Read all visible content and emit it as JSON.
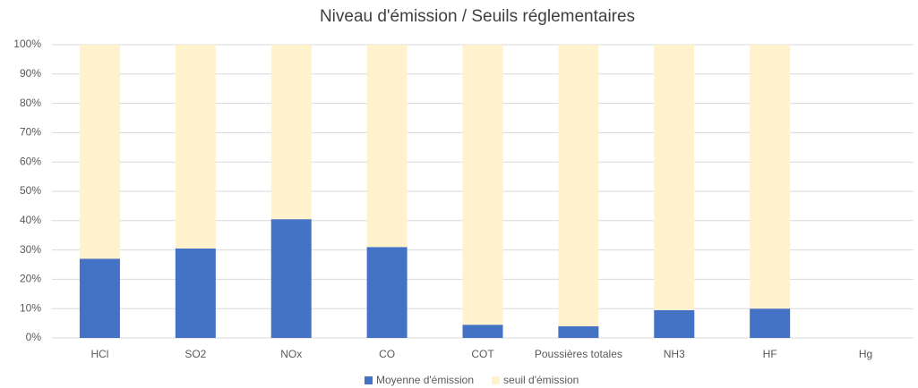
{
  "chart_data": {
    "type": "stacked_bar",
    "title": "Niveau d'émission / Seuils réglementaires",
    "categories": [
      "HCl",
      "SO2",
      "NOx",
      "CO",
      "COT",
      "Poussières totales",
      "NH3",
      "HF",
      "Hg"
    ],
    "series": [
      {
        "name": "Moyenne d'émission",
        "color": "#4472c4",
        "values": [
          27,
          30.5,
          40.5,
          31,
          4.5,
          4,
          9.5,
          10,
          0
        ]
      },
      {
        "name": "seuil d'émission",
        "color": "#fff2cc",
        "values": [
          73,
          69.5,
          59.5,
          69,
          95.5,
          96,
          90.5,
          90,
          0
        ]
      }
    ],
    "ylim": [
      0,
      100
    ],
    "yticks": [
      {
        "value": 0,
        "label": "0%"
      },
      {
        "value": 10,
        "label": "10%"
      },
      {
        "value": 20,
        "label": "20%"
      },
      {
        "value": 30,
        "label": "30%"
      },
      {
        "value": 40,
        "label": "40%"
      },
      {
        "value": 50,
        "label": "50%"
      },
      {
        "value": 60,
        "label": "60%"
      },
      {
        "value": 70,
        "label": "70%"
      },
      {
        "value": 80,
        "label": "80%"
      },
      {
        "value": 90,
        "label": "90%"
      },
      {
        "value": 100,
        "label": "100%"
      }
    ],
    "grid": true,
    "legend": "bottom"
  }
}
